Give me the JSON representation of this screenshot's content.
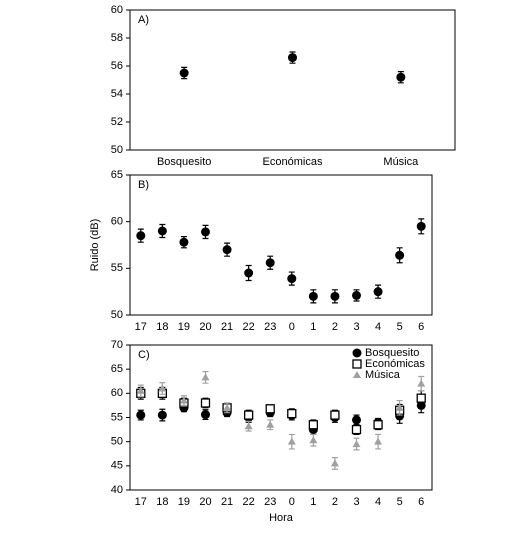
{
  "chart_data": [
    {
      "type": "scatter",
      "label": "A)",
      "categories": [
        "Bosquesito",
        "Económicas",
        "Música"
      ],
      "series": [
        {
          "color": "#000000",
          "marker": "circle",
          "values": [
            55.5,
            56.6,
            55.2
          ],
          "errors": [
            0.4,
            0.4,
            0.4
          ]
        }
      ],
      "ylim": [
        50,
        60
      ],
      "yticks": [
        50,
        52,
        54,
        56,
        58,
        60
      ]
    },
    {
      "type": "scatter",
      "label": "B)",
      "ylabel": "Ruido (dB)",
      "categories": [
        "17",
        "18",
        "19",
        "20",
        "21",
        "22",
        "23",
        "0",
        "1",
        "2",
        "3",
        "4",
        "5",
        "6"
      ],
      "series": [
        {
          "color": "#000000",
          "marker": "circle",
          "values": [
            58.5,
            59,
            57.8,
            58.9,
            57,
            54.5,
            55.6,
            53.9,
            52,
            52,
            52.1,
            52.5,
            56.4,
            59.5
          ],
          "errors": [
            0.7,
            0.7,
            0.6,
            0.7,
            0.7,
            0.8,
            0.7,
            0.7,
            0.7,
            0.7,
            0.6,
            0.7,
            0.8,
            0.8
          ]
        }
      ],
      "ylim": [
        50,
        65
      ],
      "yticks": [
        50,
        55,
        60,
        65
      ]
    },
    {
      "type": "scatter",
      "label": "C)",
      "xlabel": "Hora",
      "legend": "upper right",
      "categories": [
        "17",
        "18",
        "19",
        "20",
        "21",
        "22",
        "23",
        "0",
        "1",
        "2",
        "3",
        "4",
        "5",
        "6"
      ],
      "series": [
        {
          "name": "Bosquesito",
          "color": "#000000",
          "marker": "circle",
          "values": [
            55.5,
            55.5,
            57,
            55.6,
            56,
            55,
            56,
            55.5,
            52.5,
            55,
            54.5,
            54,
            55.3,
            57.5
          ],
          "errors": [
            1,
            1.2,
            0.8,
            1,
            0.8,
            1,
            0.8,
            1,
            1,
            1,
            1,
            0.8,
            1.5,
            1.5
          ]
        },
        {
          "name": "Económicas",
          "color": "#000000",
          "marker": "square",
          "values": [
            60,
            60,
            58,
            58,
            57,
            55.5,
            56.8,
            55.8,
            53.5,
            55.5,
            52.5,
            53.5,
            56.5,
            59
          ],
          "errors": [
            1.2,
            1.2,
            1,
            1,
            0.8,
            1,
            0.8,
            1,
            1,
            1,
            1,
            1,
            1.2,
            1.5
          ]
        },
        {
          "name": "Música",
          "color": "#a0a0a0",
          "marker": "triangle",
          "values": [
            60.5,
            61,
            58.5,
            63.3,
            57,
            53.2,
            53.5,
            50,
            50.3,
            45.5,
            49.5,
            50,
            57,
            62
          ],
          "errors": [
            1.2,
            1.2,
            1,
            1.2,
            1,
            1,
            1,
            1.5,
            1.2,
            1.2,
            1.2,
            1.5,
            1.5,
            1.5
          ]
        }
      ],
      "ylim": [
        40,
        70
      ],
      "yticks": [
        40,
        45,
        50,
        55,
        60,
        65,
        70
      ]
    }
  ]
}
